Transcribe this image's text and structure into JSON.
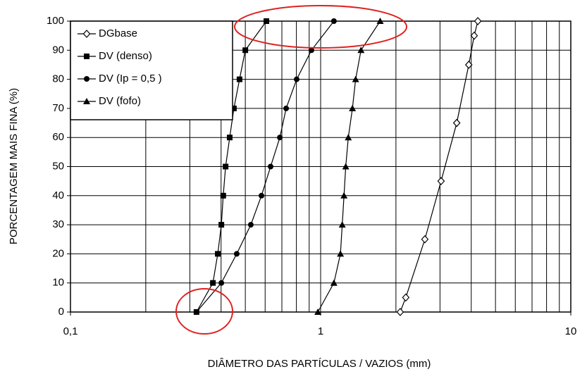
{
  "chart_data": {
    "type": "line",
    "x_label": "DIÂMETRO DAS PARTÍCULAS / VAZIOS (mm)",
    "y_label": "PORCENTAGEM MAIS FINA (%)",
    "xlog": true,
    "xlim": [
      0.1,
      10
    ],
    "xticks": [
      {
        "value": 0.1,
        "label": "0,1"
      },
      1,
      10
    ],
    "ylim": [
      0,
      100
    ],
    "yticks": [
      0,
      10,
      20,
      30,
      40,
      50,
      60,
      70,
      80,
      90,
      100
    ],
    "grid": true,
    "legend": "upper left",
    "series": [
      {
        "name": "DGbase",
        "color": "#000000",
        "marker": "diamond-open",
        "x": [
          2.08,
          2.19,
          2.61,
          3.03,
          3.5,
          3.91,
          4.11,
          4.25
        ],
        "values": [
          0,
          5,
          25,
          45,
          65,
          85,
          95,
          100
        ]
      },
      {
        "name": "DV (denso)",
        "color": "#000000",
        "marker": "square",
        "x": [
          0.319,
          0.371,
          0.388,
          0.401,
          0.408,
          0.417,
          0.433,
          0.45,
          0.474,
          0.5,
          0.607
        ],
        "values": [
          0,
          10,
          20,
          30,
          40,
          50,
          60,
          70,
          80,
          90,
          100
        ]
      },
      {
        "name": "DV (Ip = 0,5 )",
        "color": "#000000",
        "marker": "circle",
        "x": [
          0.319,
          0.401,
          0.462,
          0.526,
          0.58,
          0.631,
          0.687,
          0.728,
          0.802,
          0.919,
          1.13
        ],
        "values": [
          0,
          10,
          20,
          30,
          40,
          50,
          60,
          70,
          80,
          90,
          100
        ]
      },
      {
        "name": "DV (fofo)",
        "color": "#000000",
        "marker": "triangle",
        "x": [
          0.975,
          1.13,
          1.2,
          1.22,
          1.24,
          1.26,
          1.29,
          1.34,
          1.38,
          1.45,
          1.73
        ],
        "values": [
          0,
          10,
          20,
          30,
          40,
          50,
          60,
          70,
          80,
          90,
          100
        ]
      }
    ]
  }
}
